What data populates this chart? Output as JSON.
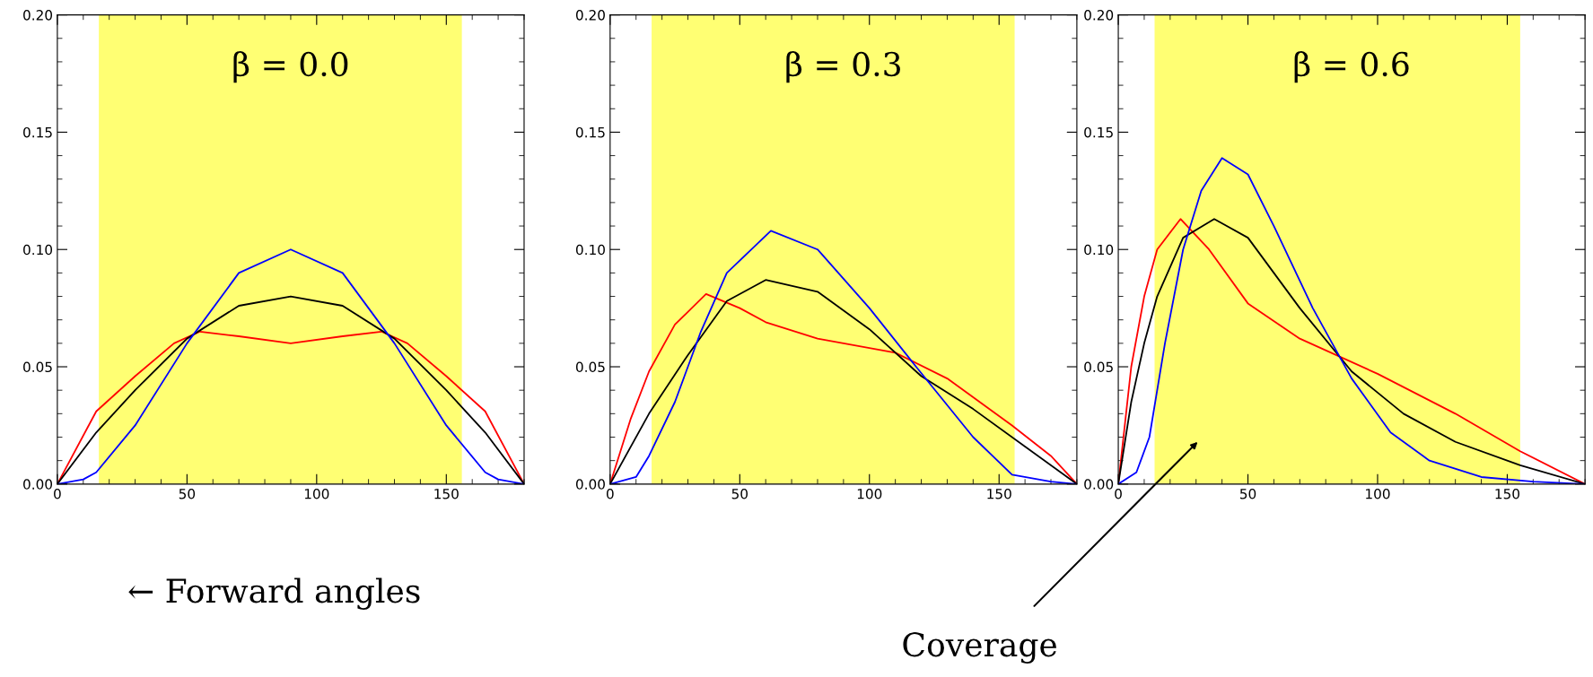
{
  "chart_data": [
    {
      "type": "line",
      "title": "β = 0.0",
      "xlim": [
        0,
        180
      ],
      "ylim": [
        0,
        0.2
      ],
      "xticks": [
        0,
        50,
        100,
        150
      ],
      "yticks": [
        {
          "value": 0,
          "label": "0.00"
        },
        {
          "value": 0.05,
          "label": "0.05"
        },
        {
          "value": 0.1,
          "label": "0.10"
        },
        {
          "value": 0.15,
          "label": "0.15"
        },
        {
          "value": 0.2,
          "label": "0.20"
        }
      ],
      "grid": false,
      "legend": false,
      "marker": "none",
      "line_style": "solid",
      "bands": [
        {
          "axis": "x",
          "from": 16,
          "to": 156,
          "color": "#ffff00"
        }
      ],
      "annotations": [
        "← Forward angles"
      ],
      "series": [
        {
          "color": "#ff0000",
          "x": [
            0,
            15,
            30,
            45,
            55,
            70,
            90,
            110,
            125,
            135,
            150,
            165,
            180
          ],
          "values": [
            0,
            0.031,
            0.046,
            0.06,
            0.065,
            0.063,
            0.06,
            0.063,
            0.065,
            0.06,
            0.046,
            0.031,
            0
          ]
        },
        {
          "color": "#000000",
          "x": [
            0,
            15,
            30,
            50,
            70,
            90,
            110,
            130,
            150,
            165,
            180
          ],
          "values": [
            0,
            0.022,
            0.04,
            0.062,
            0.076,
            0.08,
            0.076,
            0.062,
            0.04,
            0.022,
            0
          ]
        },
        {
          "color": "#0000ff",
          "x": [
            0,
            10,
            15,
            30,
            50,
            70,
            90,
            110,
            130,
            150,
            165,
            170,
            180
          ],
          "values": [
            0,
            0.002,
            0.005,
            0.025,
            0.06,
            0.09,
            0.1,
            0.09,
            0.06,
            0.025,
            0.005,
            0.002,
            0
          ]
        }
      ]
    },
    {
      "type": "line",
      "title": "β = 0.3",
      "xlim": [
        0,
        180
      ],
      "ylim": [
        0,
        0.2
      ],
      "xticks": [
        0,
        50,
        100,
        150
      ],
      "yticks": [
        {
          "value": 0,
          "label": "0.00"
        },
        {
          "value": 0.05,
          "label": "0.05"
        },
        {
          "value": 0.1,
          "label": "0.10"
        },
        {
          "value": 0.15,
          "label": "0.15"
        },
        {
          "value": 0.2,
          "label": "0.20"
        }
      ],
      "grid": false,
      "legend": false,
      "marker": "none",
      "line_style": "solid",
      "bands": [
        {
          "axis": "x",
          "from": 16,
          "to": 156,
          "color": "#ffff00"
        }
      ],
      "series": [
        {
          "color": "#ff0000",
          "x": [
            0,
            8,
            15,
            25,
            37,
            50,
            60,
            80,
            110,
            130,
            155,
            170,
            180
          ],
          "values": [
            0,
            0.028,
            0.048,
            0.068,
            0.081,
            0.075,
            0.069,
            0.062,
            0.056,
            0.045,
            0.025,
            0.012,
            0
          ]
        },
        {
          "color": "#000000",
          "x": [
            0,
            15,
            30,
            45,
            60,
            80,
            100,
            120,
            140,
            160,
            180
          ],
          "values": [
            0,
            0.03,
            0.055,
            0.078,
            0.087,
            0.082,
            0.066,
            0.046,
            0.032,
            0.016,
            0
          ]
        },
        {
          "color": "#0000ff",
          "x": [
            0,
            10,
            15,
            25,
            35,
            45,
            62,
            80,
            100,
            118,
            140,
            155,
            170,
            180
          ],
          "values": [
            0,
            0.003,
            0.012,
            0.035,
            0.065,
            0.09,
            0.108,
            0.1,
            0.075,
            0.05,
            0.02,
            0.004,
            0.001,
            0
          ]
        }
      ]
    },
    {
      "type": "line",
      "title": "β = 0.6",
      "xlim": [
        0,
        180
      ],
      "ylim": [
        0,
        0.2
      ],
      "xticks": [
        0,
        50,
        100,
        150
      ],
      "yticks": [
        {
          "value": 0,
          "label": "0.00"
        },
        {
          "value": 0.05,
          "label": "0.05"
        },
        {
          "value": 0.1,
          "label": "0.10"
        },
        {
          "value": 0.15,
          "label": "0.15"
        },
        {
          "value": 0.2,
          "label": "0.20"
        }
      ],
      "grid": false,
      "legend": false,
      "marker": "none",
      "line_style": "solid",
      "bands": [
        {
          "axis": "x",
          "from": 14,
          "to": 155,
          "color": "#ffff00"
        }
      ],
      "annotations": [
        "Coverage"
      ],
      "series": [
        {
          "color": "#ff0000",
          "x": [
            0,
            5,
            10,
            15,
            24,
            35,
            50,
            70,
            100,
            130,
            155,
            180
          ],
          "values": [
            0,
            0.05,
            0.08,
            0.1,
            0.113,
            0.1,
            0.077,
            0.062,
            0.047,
            0.03,
            0.014,
            0
          ]
        },
        {
          "color": "#000000",
          "x": [
            0,
            5,
            10,
            15,
            25,
            37,
            50,
            70,
            90,
            110,
            130,
            155,
            180
          ],
          "values": [
            0,
            0.035,
            0.06,
            0.08,
            0.105,
            0.113,
            0.105,
            0.075,
            0.048,
            0.03,
            0.018,
            0.008,
            0
          ]
        },
        {
          "color": "#0000ff",
          "x": [
            0,
            7,
            12,
            18,
            25,
            32,
            40,
            50,
            60,
            75,
            90,
            105,
            120,
            140,
            160,
            180
          ],
          "values": [
            0,
            0.005,
            0.02,
            0.06,
            0.1,
            0.125,
            0.139,
            0.132,
            0.11,
            0.075,
            0.045,
            0.022,
            0.01,
            0.003,
            0.001,
            0
          ]
        }
      ]
    }
  ]
}
